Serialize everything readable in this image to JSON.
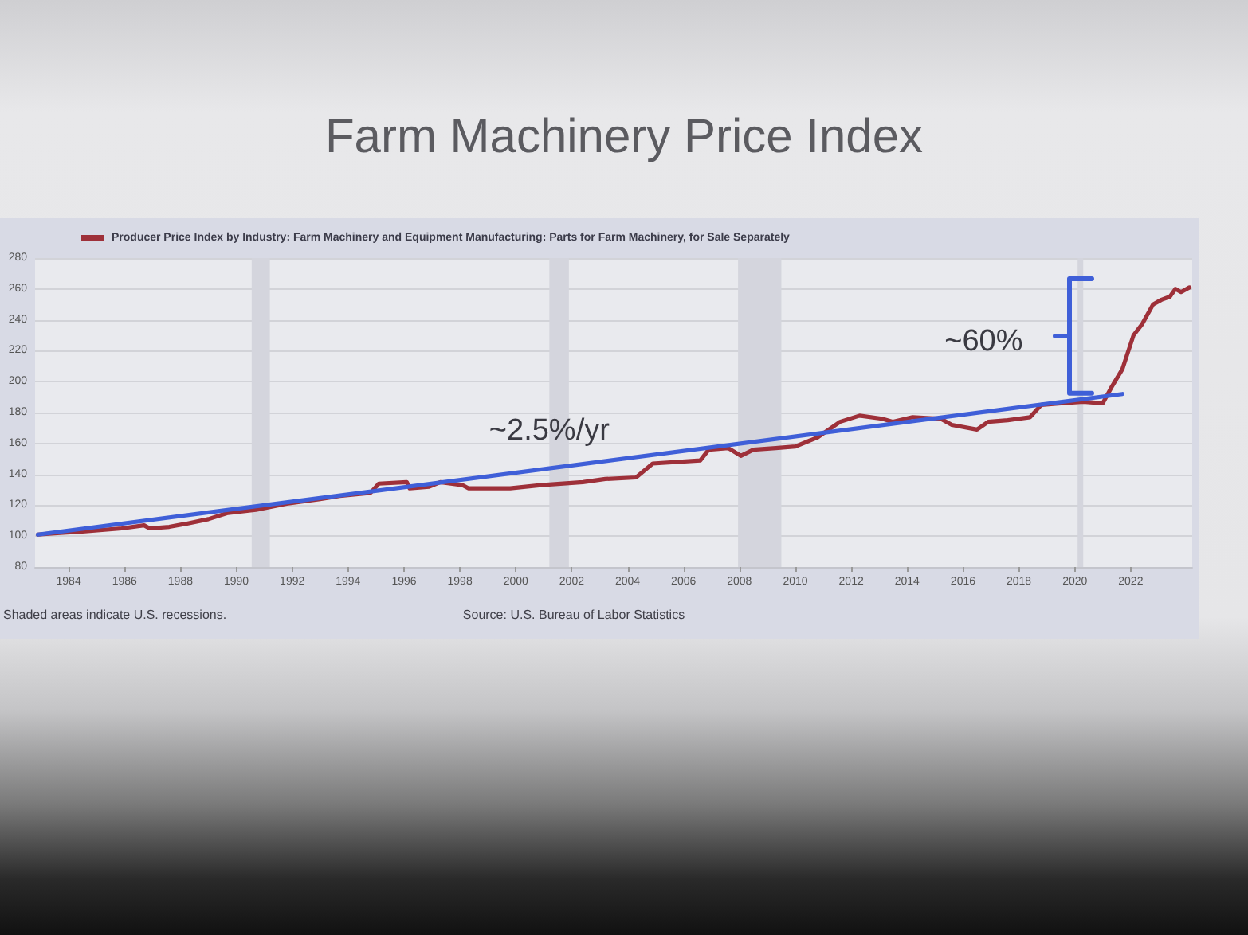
{
  "chart_data": {
    "type": "line",
    "title": "Farm Machinery Price Index",
    "series": [
      {
        "name": "Producer Price Index by Industry: Farm Machinery and Equipment Manufacturing: Parts for Farm Machinery, for Sale Separately",
        "color": "#9e3039",
        "x": [
          1982.9,
          1983.6,
          1984.5,
          1985.9,
          1986.7,
          1986.9,
          1987.6,
          1988.2,
          1989.0,
          1989.7,
          1990.7,
          1991.8,
          1993.0,
          1993.7,
          1994.8,
          1995.1,
          1996.1,
          1996.2,
          1996.9,
          1997.3,
          1998.1,
          1998.3,
          1999.8,
          2000.9,
          2002.4,
          2003.2,
          2004.3,
          2004.9,
          2006.6,
          2006.9,
          2007.6,
          2008.05,
          2008.5,
          2009.3,
          2010.0,
          2010.8,
          2011.6,
          2012.3,
          2013.1,
          2013.5,
          2014.2,
          2015.2,
          2015.6,
          2016.5,
          2016.9,
          2017.6,
          2018.4,
          2018.8,
          2019.5,
          2020.3,
          2021.0,
          2021.3,
          2021.7,
          2022.1,
          2022.4,
          2022.8,
          2023.1,
          2023.4,
          2023.6,
          2023.8,
          2024.1
        ],
        "values": [
          101,
          102,
          103,
          105,
          107,
          105,
          106,
          108,
          111,
          115,
          117,
          121,
          124,
          126,
          128,
          134,
          135,
          131,
          132,
          135,
          133,
          131,
          131,
          133,
          135,
          137,
          138,
          147,
          149,
          156,
          157,
          152,
          156,
          157,
          158,
          164,
          174,
          178,
          176,
          174,
          177,
          176,
          172,
          169,
          174,
          175,
          177,
          185,
          186,
          187,
          186,
          196,
          208,
          230,
          237,
          250,
          253,
          255,
          260,
          258,
          261
        ]
      },
      {
        "type": "line",
        "color": "#3f5fd8",
        "x": [
          1982.9,
          2021.7
        ],
        "values": [
          101,
          192
        ]
      }
    ],
    "xlim": [
      1982.8,
      2024.2
    ],
    "xticks": [
      1984,
      1986,
      1988,
      1990,
      1992,
      1994,
      1996,
      1998,
      2000,
      2002,
      2004,
      2006,
      2008,
      2010,
      2012,
      2014,
      2016,
      2018,
      2020,
      2022
    ],
    "ylim": [
      80,
      280
    ],
    "yticks": [
      80,
      100,
      120,
      140,
      160,
      180,
      200,
      220,
      240,
      260,
      280
    ],
    "grid": "y",
    "legend": "top left",
    "marker": "none",
    "bands": [
      {
        "axis": "x",
        "from": 1990.55,
        "to": 1991.2,
        "color": "#d4d5dd"
      },
      {
        "axis": "x",
        "from": 2001.2,
        "to": 2001.9,
        "color": "#d4d5dd"
      },
      {
        "axis": "x",
        "from": 2007.95,
        "to": 2009.5,
        "color": "#d4d5dd"
      },
      {
        "axis": "x",
        "from": 2020.1,
        "to": 2020.3,
        "color": "#d4d5dd"
      }
    ],
    "annotations": [
      {
        "text": "~2.5%/yr",
        "x": 2001.2,
        "y": 168
      },
      "~60%",
      "Shaded areas indicate U.S. recessions.",
      "Source: U.S. Bureau of Labor Statistics"
    ]
  }
}
